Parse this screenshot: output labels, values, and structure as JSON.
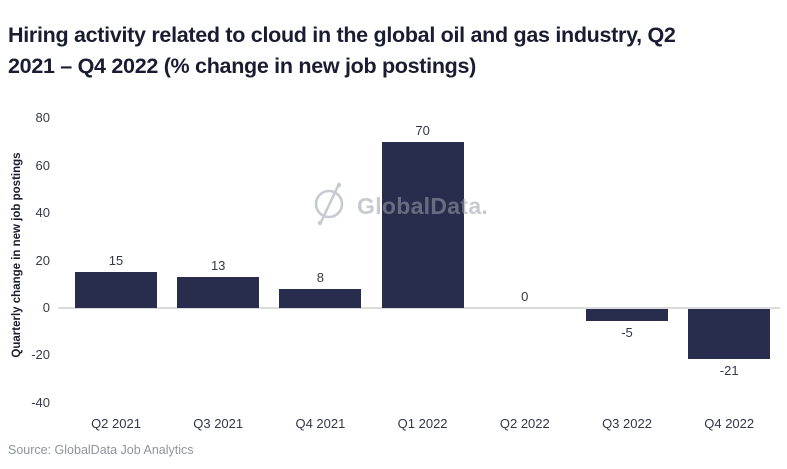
{
  "page": {
    "title": "Hiring activity related to cloud in the global oil and gas industry, Q2 2021 – Q4 2022 (% change in new job postings)",
    "watermark": "GlobalData.",
    "source": "Source: GlobalData Job Analytics"
  },
  "colors": {
    "bar": "#282C4D",
    "title_text": "#1A1D31",
    "axis_text": "#363A4E",
    "zero_line": "#DBDBDB",
    "watermark": "#9BA1AC",
    "source_text": "#8F949E",
    "background": "#FFFFFF"
  },
  "chart_data": {
    "type": "bar",
    "title": "Hiring activity related to cloud in the global oil and gas industry, Q2 2021 – Q4 2022 (% change in new job postings)",
    "categories": [
      "Q2 2021",
      "Q3 2021",
      "Q4 2021",
      "Q1 2022",
      "Q2 2022",
      "Q3 2022",
      "Q4 2022"
    ],
    "values": [
      15,
      13,
      8,
      70,
      0,
      -5,
      -21
    ],
    "data_labels": [
      "15",
      "13",
      "8",
      "70",
      "0",
      "-5",
      "-21"
    ],
    "xlabel": "",
    "ylabel": "Quarterly change in new job postings",
    "yticks": [
      80,
      60,
      40,
      20,
      0,
      -20,
      -40
    ],
    "ylim": [
      -40,
      80
    ],
    "grid": false,
    "legend": false
  }
}
